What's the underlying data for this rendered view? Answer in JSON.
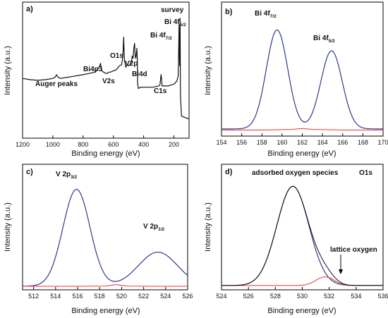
{
  "chart_data": [
    {
      "panel": "a)",
      "type": "line",
      "title": "survey",
      "xlabel": "Binding energy (eV)",
      "ylabel": "Intensity (a.u.)",
      "xlim": [
        1200,
        100
      ],
      "x_reversed": true,
      "xticks": [
        1200,
        1000,
        800,
        600,
        400,
        200
      ],
      "ylim": [
        0,
        100
      ],
      "series": [
        {
          "color": "#111111",
          "x": [
            1200,
            1150,
            1100,
            1050,
            1000,
            985,
            975,
            965,
            950,
            900,
            850,
            800,
            760,
            720,
            700,
            690,
            685,
            680,
            675,
            665,
            650,
            640,
            630,
            620,
            600,
            580,
            560,
            545,
            537,
            532,
            529,
            527,
            524,
            520,
            518,
            516,
            514,
            510,
            500,
            490,
            480,
            475,
            470,
            465,
            460,
            456,
            452,
            448,
            445,
            442,
            440,
            435,
            420,
            380,
            340,
            300,
            292,
            288,
            285,
            282,
            278,
            270,
            240,
            210,
            195,
            180,
            172,
            170,
            166,
            164,
            162,
            159,
            157,
            150,
            130,
            110,
            100
          ],
          "y": [
            42,
            41,
            40.5,
            41,
            42,
            43,
            45,
            43,
            42,
            43,
            44,
            45,
            46,
            47,
            50,
            52,
            54,
            50,
            48,
            47,
            46,
            46,
            47,
            47,
            48,
            49,
            52,
            53,
            60,
            75,
            63,
            56,
            55,
            52,
            51,
            51,
            52,
            53,
            52,
            53,
            56,
            60,
            58,
            66,
            70,
            60,
            58,
            62,
            66,
            58,
            38,
            34,
            35,
            35,
            35,
            36,
            37,
            42,
            45,
            42,
            36,
            36,
            36,
            37,
            38,
            40,
            44,
            54,
            85,
            60,
            52,
            90,
            28,
            12,
            11,
            10,
            10
          ]
        }
      ],
      "annotations": [
        "Auger peaks",
        "Bi4p3",
        "V2s",
        "O1s",
        "V2p",
        "Bi4d",
        "C1s",
        "Bi 4f7/2",
        "Bi 4f5/2"
      ]
    },
    {
      "panel": "b)",
      "type": "line",
      "xlabel": "Binding energy (eV)",
      "ylabel": "Intensity (a.u.)",
      "xlim": [
        154,
        170
      ],
      "xticks": [
        154,
        156,
        158,
        160,
        162,
        164,
        166,
        168,
        170
      ],
      "ylim": [
        0,
        100
      ],
      "series": [
        {
          "color": "#2b3a8c",
          "peaks": [
            {
              "center": 159.5,
              "height": 90,
              "fwhm": 2.5
            },
            {
              "center": 164.9,
              "height": 71,
              "fwhm": 2.5
            }
          ],
          "baseline": [
            [
              154,
              2
            ],
            [
              162,
              2
            ],
            [
              170,
              2
            ]
          ]
        },
        {
          "color": "#e8352e",
          "x": [
            154,
            158,
            161,
            162,
            163,
            166,
            170
          ],
          "y": [
            1,
            1,
            1.6,
            2.4,
            1.6,
            1,
            1
          ]
        }
      ],
      "annotations": [
        "Bi 4f7/2",
        "Bi 4f5/2"
      ]
    },
    {
      "panel": "c)",
      "type": "line",
      "xlabel": "Binding energy (eV)",
      "ylabel": "Intensity (a.u.)",
      "xlim": [
        511,
        526
      ],
      "xticks": [
        512,
        514,
        516,
        518,
        520,
        522,
        524,
        526
      ],
      "ylim": [
        0,
        100
      ],
      "series": [
        {
          "color": "#2b3a8c",
          "peaks": [
            {
              "center": 515.9,
              "height": 91,
              "fwhm": 2.9
            },
            {
              "center": 523.3,
              "height": 32,
              "fwhm": 4.2
            }
          ],
          "baseline": [
            [
              511,
              2
            ],
            [
              526,
              2
            ]
          ]
        },
        {
          "color": "#e8352e",
          "x": [
            511,
            516,
            518.5,
            519.5,
            520.5,
            523,
            526
          ],
          "y": [
            2,
            2,
            2.2,
            3.6,
            2.2,
            2,
            2
          ]
        }
      ],
      "annotations": [
        "V 2p3/2",
        "V 2p1/2"
      ]
    },
    {
      "panel": "d)",
      "type": "line",
      "title": "O1s",
      "xlabel": "Binding energy (eV)",
      "ylabel": "Intensity (a.u.)",
      "xlim": [
        524,
        536
      ],
      "xticks": [
        524,
        526,
        528,
        530,
        532,
        534,
        536
      ],
      "ylim": [
        0,
        100
      ],
      "series": [
        {
          "color": "#2b3a8c",
          "name": "adsorbed oxygen species",
          "peaks": [
            {
              "center": 529.3,
              "height": 92,
              "fwhm": 2.8
            }
          ],
          "baseline": [
            [
              524,
              2
            ],
            [
              536,
              2
            ]
          ]
        },
        {
          "color": "#e8352e",
          "name": "lattice oxygen",
          "peaks": [
            {
              "center": 531.7,
              "height": 8,
              "fwhm": 1.6
            }
          ],
          "baseline": [
            [
              524,
              2
            ],
            [
              536,
              2
            ]
          ]
        },
        {
          "color": "#111111",
          "peaks": [
            {
              "center": 529.3,
              "height": 92,
              "fwhm": 2.8
            },
            {
              "center": 531.7,
              "height": 8,
              "fwhm": 1.6
            }
          ],
          "baseline": [
            [
              524,
              2
            ],
            [
              536,
              2
            ]
          ]
        }
      ],
      "annotations": [
        "adsorbed oxygen species",
        "lattice oxygen"
      ]
    }
  ]
}
